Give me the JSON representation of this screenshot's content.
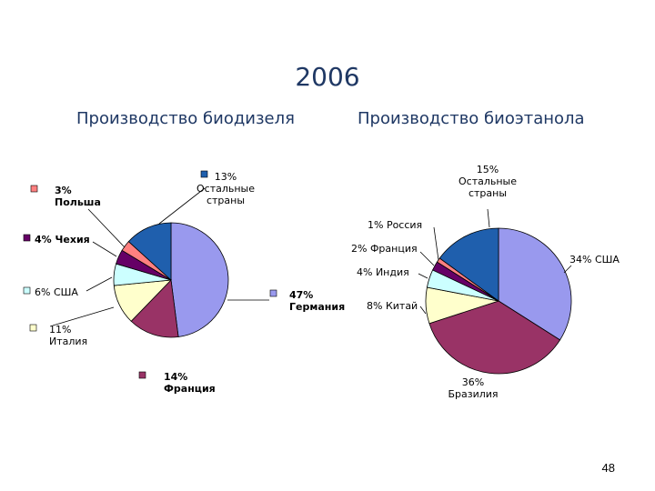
{
  "slide": {
    "title": "2006",
    "page_number": "48"
  },
  "colors": {
    "blue": "#1f5fad",
    "lavender": "#9999ee",
    "maroon": "#993366",
    "cream": "#ffffcc",
    "light_cyan": "#ccffff",
    "purple": "#660066",
    "salmon": "#ff8080",
    "gray": "#c0c0c0"
  },
  "chart_data": [
    {
      "type": "pie",
      "title": "Производство биодизеля",
      "slices": [
        {
          "name": "Германия",
          "pct_label": "47%",
          "value": 47,
          "color": "#9999ee"
        },
        {
          "name": "Франция",
          "pct_label": "14%",
          "value": 14,
          "color": "#993366"
        },
        {
          "name": "Италия",
          "pct_label": "11%",
          "value": 11,
          "color": "#ffffcc"
        },
        {
          "name": "США",
          "pct_label": "6%",
          "value": 6,
          "color": "#ccffff"
        },
        {
          "name": "Чехия",
          "pct_label": "4%",
          "value": 4,
          "color": "#660066"
        },
        {
          "name": "Польша",
          "pct_label": "3%",
          "value": 3,
          "color": "#ff8080"
        },
        {
          "name": "Остальные страны",
          "pct_label": "13%",
          "value": 13,
          "color": "#1f5fad"
        }
      ],
      "labels": [
        {
          "lines": [
            "47%",
            "Германия"
          ]
        },
        {
          "lines": [
            "14%",
            "Франция"
          ]
        },
        {
          "lines": [
            "11%",
            "Италия"
          ]
        },
        {
          "lines": [
            "6% США"
          ]
        },
        {
          "lines": [
            "4% Чехия"
          ]
        },
        {
          "lines": [
            "3%",
            "Польша"
          ]
        },
        {
          "lines": [
            "13%",
            "Остальные",
            "страны"
          ]
        }
      ]
    },
    {
      "type": "pie",
      "title": "Производство биоэтанола",
      "slices": [
        {
          "name": "США",
          "pct_label": "34%",
          "value": 34,
          "color": "#9999ee"
        },
        {
          "name": "Бразилия",
          "pct_label": "36%",
          "value": 36,
          "color": "#993366"
        },
        {
          "name": "Китай",
          "pct_label": "8%",
          "value": 8,
          "color": "#ffffcc"
        },
        {
          "name": "Индия",
          "pct_label": "4%",
          "value": 4,
          "color": "#ccffff"
        },
        {
          "name": "Франция",
          "pct_label": "2%",
          "value": 2,
          "color": "#660066"
        },
        {
          "name": "Россия",
          "pct_label": "1%",
          "value": 1,
          "color": "#ff8080"
        },
        {
          "name": "Остальные страны",
          "pct_label": "15%",
          "value": 15,
          "color": "#1f5fad"
        }
      ],
      "labels": [
        {
          "lines": [
            "34% США"
          ]
        },
        {
          "lines": [
            "36%",
            "Бразилия"
          ]
        },
        {
          "lines": [
            "8% Китай"
          ]
        },
        {
          "lines": [
            "4% Индия"
          ]
        },
        {
          "lines": [
            "2% Франция"
          ]
        },
        {
          "lines": [
            "1% Россия"
          ]
        },
        {
          "lines": [
            "15%",
            "Остальные",
            "страны"
          ]
        }
      ]
    }
  ]
}
